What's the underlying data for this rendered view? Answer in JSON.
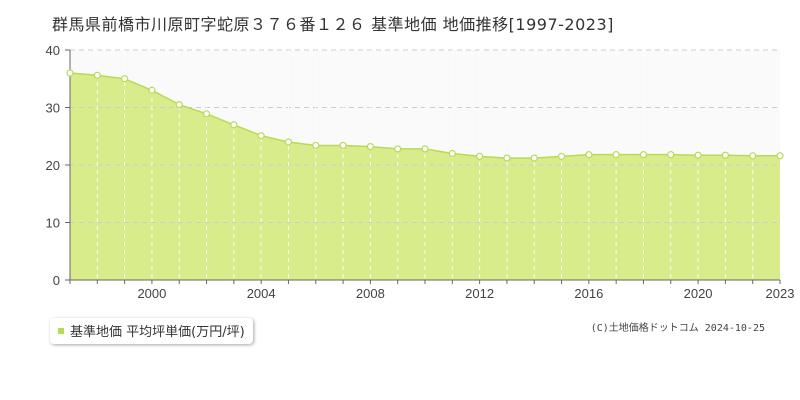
{
  "title": "群馬県前橋市川原町字蛇原３７６番１２６ 基準地価 地価推移[1997-2023]",
  "legend": {
    "label": "基準地価 平均坪単価(万円/坪)"
  },
  "copyright": "(C)土地価格ドットコム 2024-10-25",
  "colors": {
    "area_fill": "#d9ec8c",
    "line": "#b8da55",
    "marker_fill": "#ffffff",
    "plot_bg_upper": "#fafafa",
    "grid": "#cccccc",
    "legend_swatch": "#b8da55"
  },
  "chart_data": {
    "type": "area",
    "title": "",
    "xlabel": "",
    "ylabel": "",
    "ylim": [
      0,
      40
    ],
    "xlim": [
      1997,
      2023
    ],
    "yticks": [
      0,
      10,
      20,
      30,
      40
    ],
    "xticks": [
      2000,
      2004,
      2008,
      2012,
      2016,
      2020,
      2023
    ],
    "grid": true,
    "legend_position": "bottom-left",
    "series": [
      {
        "name": "基準地価 平均坪単価(万円/坪)",
        "x": [
          1997,
          1998,
          1999,
          2000,
          2001,
          2002,
          2003,
          2004,
          2005,
          2006,
          2007,
          2008,
          2009,
          2010,
          2011,
          2012,
          2013,
          2014,
          2015,
          2016,
          2017,
          2018,
          2019,
          2020,
          2021,
          2022,
          2023
        ],
        "values": [
          36.0,
          35.6,
          35.0,
          33.0,
          30.5,
          28.9,
          27.0,
          25.1,
          24.0,
          23.4,
          23.4,
          23.2,
          22.8,
          22.8,
          22.0,
          21.5,
          21.2,
          21.2,
          21.5,
          21.8,
          21.8,
          21.8,
          21.8,
          21.7,
          21.7,
          21.6,
          21.6
        ]
      }
    ]
  }
}
